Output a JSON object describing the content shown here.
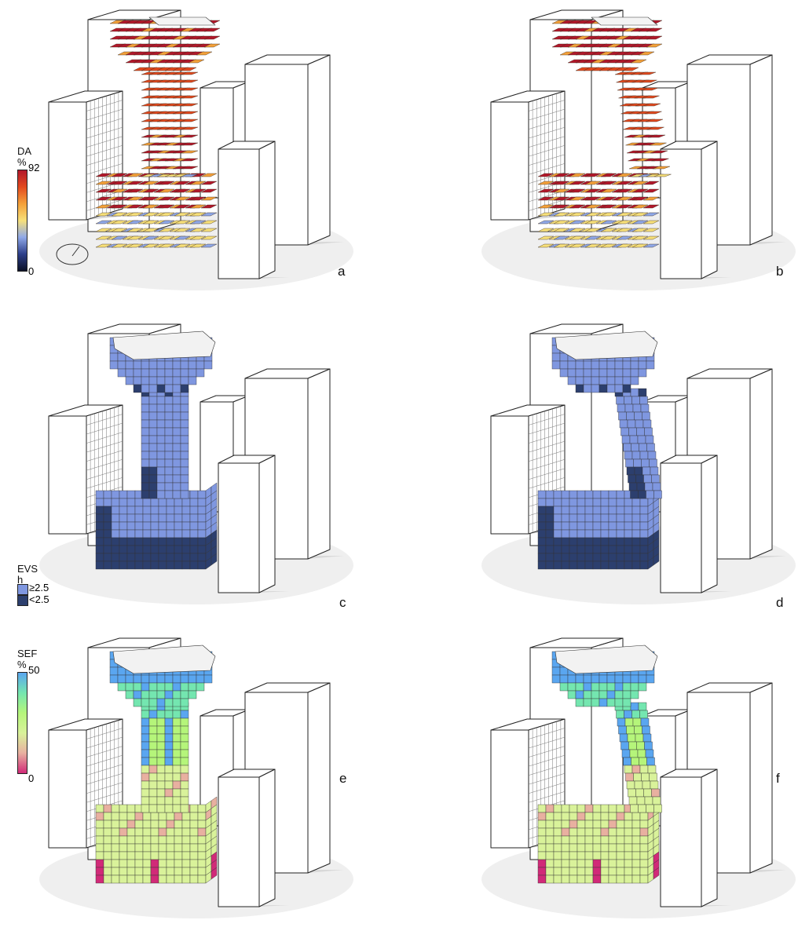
{
  "panels": [
    {
      "id": "a",
      "label": "a",
      "style": "da-wire",
      "variant": 0
    },
    {
      "id": "b",
      "label": "b",
      "style": "da-wire",
      "variant": 1
    },
    {
      "id": "c",
      "label": "c",
      "style": "evs",
      "variant": 0
    },
    {
      "id": "d",
      "label": "d",
      "style": "evs",
      "variant": 1
    },
    {
      "id": "e",
      "label": "e",
      "style": "sef",
      "variant": 0
    },
    {
      "id": "f",
      "label": "f",
      "style": "sef",
      "variant": 1
    }
  ],
  "legends": {
    "da": {
      "title_line1": "DA",
      "title_line2": "%",
      "max": "92",
      "min": "0",
      "colors": [
        "#b2182b",
        "#e34a1f",
        "#f4a13a",
        "#f7e07a",
        "#8fa8e8",
        "#2d3f8a",
        "#0b1026"
      ]
    },
    "evs": {
      "title_line1": "EVS",
      "title_line2": "h",
      "high_label": "≥2.5",
      "low_label": "<2.5",
      "high_color": "#7f97e0",
      "low_color": "#2c3f6e"
    },
    "sef": {
      "title_line1": "SEF",
      "title_line2": "%",
      "max": "50",
      "min": "0",
      "colors": [
        "#5aa6f0",
        "#74e6b0",
        "#b5f57a",
        "#d9f29a",
        "#e8b0a0",
        "#d12a78"
      ]
    }
  },
  "colors": {
    "building_fill": "#ffffff",
    "building_stroke": "#222222",
    "shadow": "#d9d9d9",
    "evs_high": "#7f97e0",
    "evs_low": "#2c3f6e",
    "roof": "#f2f2f2"
  }
}
